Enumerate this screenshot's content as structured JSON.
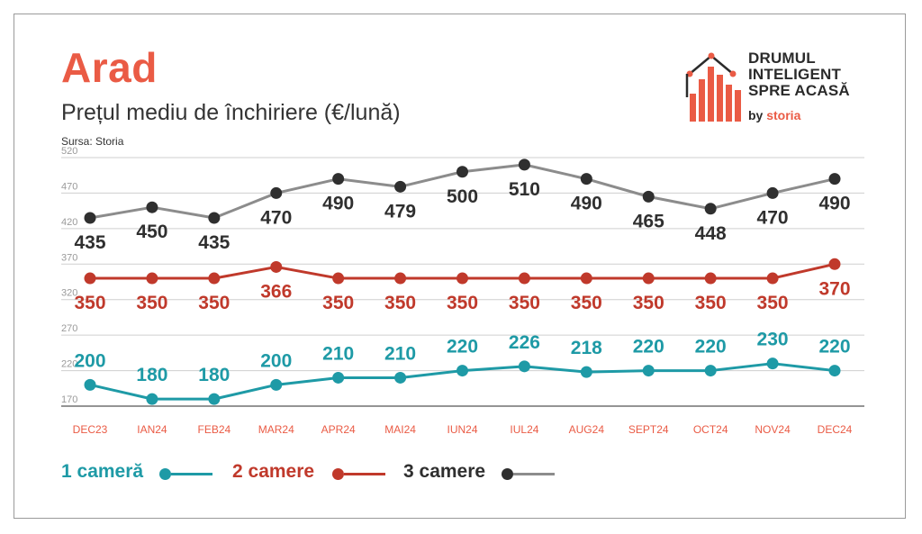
{
  "header": {
    "city": "Arad",
    "subtitle": "Prețul mediu de închiriere (€/lună)",
    "source": "Sursa: Storia"
  },
  "logo": {
    "line1": "DRUMUL",
    "line2": "INTELIGENT",
    "line3": "SPRE ACASĂ",
    "by": "by",
    "brand": "storia",
    "icon": "house-bar-chart-icon"
  },
  "colors": {
    "title": "#ea5b45",
    "one_room": "#1e9aa6",
    "two_rooms": "#c0392b",
    "three_rooms": "#8c8c8c",
    "three_rooms_dot": "#2f2f2f",
    "x_labels": "#ea5b45",
    "grid": "#cfcfcf"
  },
  "chart_data": {
    "type": "line",
    "categories": [
      "DEC23",
      "IAN24",
      "FEB24",
      "MAR24",
      "APR24",
      "MAI24",
      "IUN24",
      "IUL24",
      "AUG24",
      "SEPT24",
      "OCT24",
      "NOV24",
      "DEC24"
    ],
    "yticks": [
      520,
      470,
      420,
      370,
      320,
      270,
      220,
      170
    ],
    "ylim": [
      170,
      520
    ],
    "grid": true,
    "legend_position": "bottom-left",
    "series": [
      {
        "name": "1 cameră",
        "color": "#1e9aa6",
        "values": [
          200,
          180,
          180,
          200,
          210,
          210,
          220,
          226,
          218,
          220,
          220,
          230,
          220
        ]
      },
      {
        "name": "2 camere",
        "color": "#c0392b",
        "values": [
          350,
          350,
          350,
          366,
          350,
          350,
          350,
          350,
          350,
          350,
          350,
          350,
          370
        ]
      },
      {
        "name": "3 camere",
        "color": "#8c8c8c",
        "values": [
          435,
          450,
          435,
          470,
          490,
          479,
          500,
          510,
          490,
          465,
          448,
          470,
          490
        ]
      }
    ]
  },
  "legend": [
    {
      "label": "1 cameră"
    },
    {
      "label": "2 camere"
    },
    {
      "label": "3 camere"
    }
  ]
}
